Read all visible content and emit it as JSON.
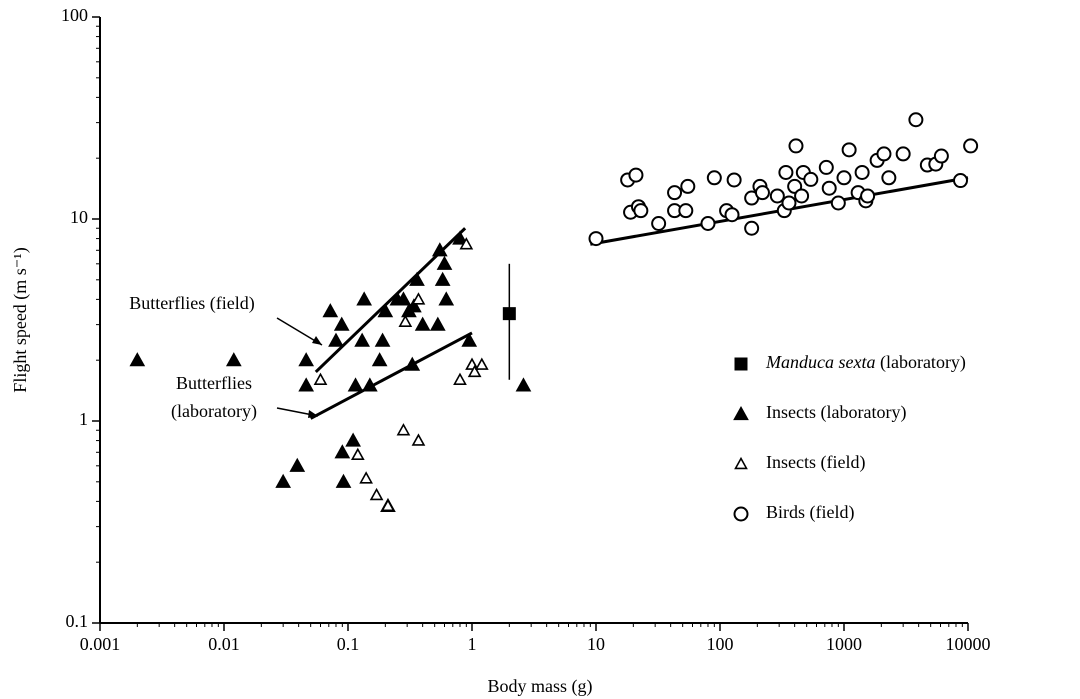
{
  "chart_data": {
    "type": "scatter",
    "x_label": "Body mass (g)",
    "y_label": "Flight speed (m s⁻¹)",
    "xlim": [
      0.001,
      10000
    ],
    "ylim": [
      0.1,
      100
    ],
    "xticks": [
      0.001,
      0.01,
      0.1,
      1,
      10,
      100,
      1000,
      10000
    ],
    "yticks": [
      0.1,
      1,
      10,
      100
    ],
    "log_x": true,
    "log_y": true,
    "minor_ticks": true,
    "grid": false,
    "legend": "right",
    "series": [
      {
        "name": "Manduca sexta (laboratory)",
        "marker": "square",
        "filled": true,
        "color": "#000000",
        "x": [
          2
        ],
        "values": [
          3.4
        ],
        "ymin": [
          1.6
        ],
        "ymax": [
          6
        ]
      },
      {
        "name": "Insects (laboratory)",
        "marker": "triangle",
        "filled": true,
        "color": "#000000",
        "x": [
          0.002,
          0.012,
          0.03,
          0.039,
          0.046,
          0.046,
          0.072,
          0.08,
          0.089,
          0.09,
          0.092,
          0.11,
          0.115,
          0.13,
          0.135,
          0.15,
          0.18,
          0.19,
          0.2,
          0.21,
          0.25,
          0.28,
          0.31,
          0.34,
          0.33,
          0.36,
          0.4,
          0.53,
          0.55,
          0.58,
          0.6,
          0.62,
          0.8,
          0.95,
          2.6
        ],
        "values": [
          2,
          2,
          0.5,
          0.6,
          1.5,
          2,
          3.5,
          2.5,
          3,
          0.7,
          0.5,
          0.8,
          1.5,
          2.5,
          4,
          1.5,
          2,
          2.5,
          3.5,
          0.38,
          4,
          4,
          3.5,
          3.7,
          1.9,
          5,
          3,
          3,
          7,
          5,
          6,
          4,
          8,
          2.5,
          1.5
        ]
      },
      {
        "name": "Insects (field)",
        "marker": "triangle",
        "filled": false,
        "color": "#000000",
        "x": [
          0.06,
          0.12,
          0.14,
          0.17,
          0.21,
          0.28,
          0.29,
          0.37,
          0.37,
          0.8,
          1,
          1.05,
          1.2,
          0.9
        ],
        "values": [
          1.6,
          0.68,
          0.52,
          0.43,
          0.38,
          0.9,
          3.1,
          0.8,
          4,
          1.6,
          1.9,
          1.75,
          1.9,
          7.5
        ]
      },
      {
        "name": "Birds (field)",
        "marker": "circle",
        "filled": false,
        "color": "#000000",
        "x": [
          10,
          18,
          19,
          21,
          22,
          23,
          32,
          43,
          43,
          55,
          53,
          90,
          80,
          113,
          130,
          125,
          180,
          180,
          210,
          220,
          290,
          340,
          330,
          360,
          400,
          410,
          455,
          470,
          540,
          720,
          760,
          900,
          1000,
          1100,
          1300,
          1400,
          1500,
          1550,
          1850,
          2100,
          2300,
          3000,
          3800,
          4700,
          5500,
          6100,
          8700,
          10500
        ],
        "values": [
          8,
          15.6,
          10.8,
          16.5,
          11.5,
          11,
          9.5,
          13.5,
          11,
          14.5,
          11,
          16,
          9.5,
          11,
          15.6,
          10.5,
          12.7,
          9,
          14.5,
          13.5,
          13,
          17,
          11,
          12,
          14.5,
          23,
          13,
          17,
          15.7,
          18,
          14.2,
          12,
          16,
          22,
          13.5,
          17,
          12.3,
          13,
          19.5,
          21,
          16,
          21,
          31,
          18.5,
          18.7,
          20.5,
          15.5,
          23
        ]
      }
    ],
    "fits": [
      {
        "label": [
          "Butterflies (field)"
        ],
        "x": [
          0.055,
          0.88
        ],
        "values": [
          1.75,
          9
        ]
      },
      {
        "label": [
          "Butterflies",
          "(laboratory)"
        ],
        "x": [
          0.05,
          1
        ],
        "values": [
          1.03,
          2.73
        ]
      },
      {
        "x": [
          9,
          10000
        ],
        "values": [
          7.5,
          16
        ]
      }
    ]
  }
}
